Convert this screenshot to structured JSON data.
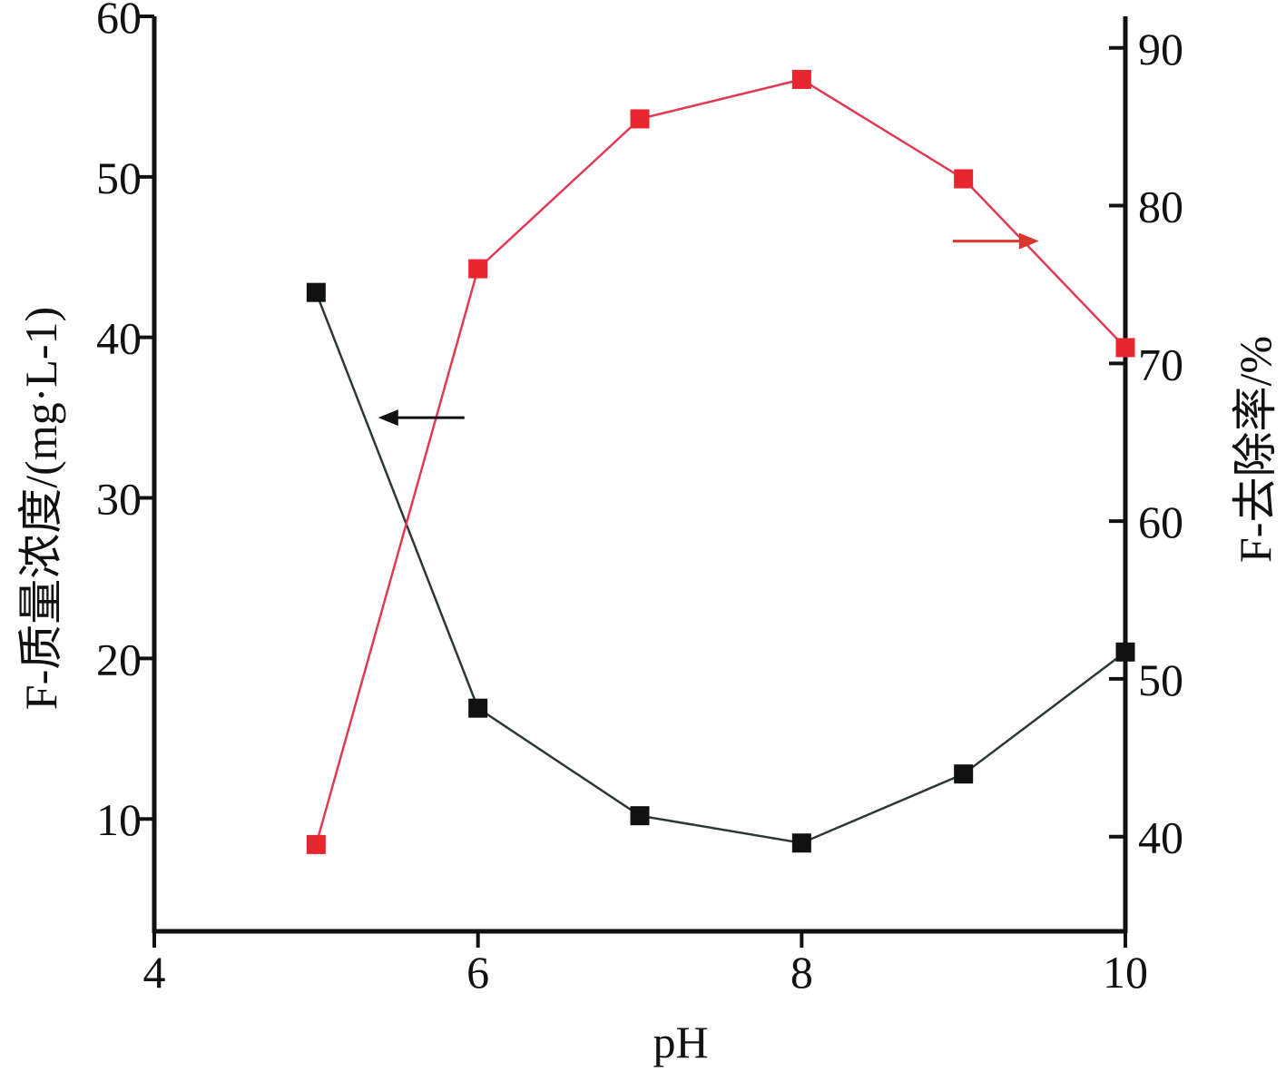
{
  "chart_data": {
    "type": "line",
    "xlabel": "pH",
    "ylabel_left": "F-质量浓度/(mg·L-1)",
    "ylabel_right": "F-去除率/%",
    "x_range": [
      4,
      10
    ],
    "y_left_range": [
      3,
      60
    ],
    "y_right_range": [
      34,
      92
    ],
    "x_ticks": [
      4,
      6,
      8,
      10
    ],
    "y_left_ticks": [
      10,
      20,
      30,
      40,
      50,
      60
    ],
    "y_right_ticks": [
      40,
      50,
      60,
      70,
      80,
      90
    ],
    "grid": false,
    "series": [
      {
        "axis": "left",
        "color": "#111111",
        "line_color": "#2a3a30",
        "marker": "square",
        "x": [
          5,
          6,
          7,
          8,
          9,
          10
        ],
        "values": [
          42.8,
          16.9,
          10.2,
          8.5,
          12.8,
          20.4
        ]
      },
      {
        "axis": "right",
        "color": "#e8262f",
        "line_color": "#e23a55",
        "marker": "square",
        "x": [
          5,
          6,
          7,
          8,
          9,
          10
        ],
        "values": [
          39.5,
          76.0,
          85.5,
          88.0,
          81.7,
          71.0
        ]
      }
    ],
    "annotations": [
      {
        "type": "arrow",
        "direction": "left",
        "color": "#111111",
        "x": 5.65,
        "y_axis": "left",
        "y": 35
      },
      {
        "type": "arrow",
        "direction": "right",
        "color": "#d9362e",
        "x": 9.2,
        "y_axis": "left",
        "y": 46
      }
    ]
  }
}
